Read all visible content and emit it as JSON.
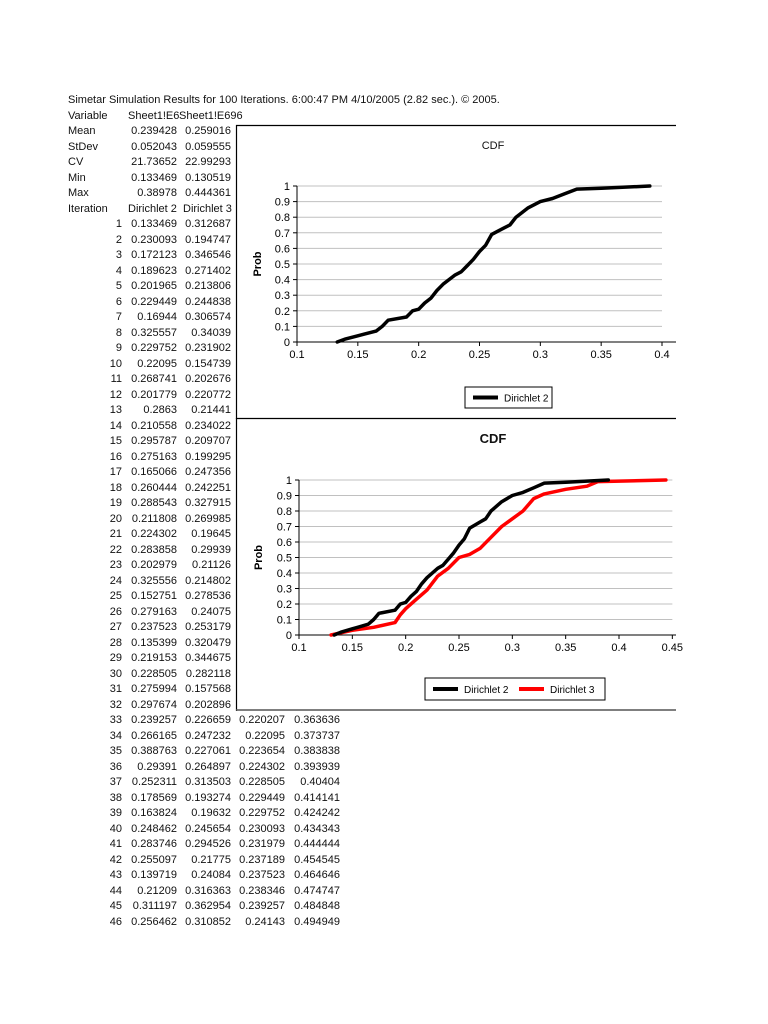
{
  "header": {
    "title": "Simetar Simulation Results for 100 Iterations.  6:00:47 PM 4/10/2005 (2.82 sec.).  © 2005."
  },
  "stats": {
    "variable_label": "Variable",
    "columns": [
      "Sheet1!E6",
      "Sheet1!E696"
    ],
    "rows": [
      {
        "label": "Mean",
        "values": [
          "0.239428",
          "0.259016"
        ]
      },
      {
        "label": "StDev",
        "values": [
          "0.052043",
          "0.059555"
        ]
      },
      {
        "label": "CV",
        "values": [
          "21.73652",
          "22.99293"
        ]
      },
      {
        "label": "Min",
        "values": [
          "0.133469",
          "0.130519"
        ]
      },
      {
        "label": "Max",
        "values": [
          "0.38978",
          "0.444361"
        ]
      }
    ],
    "iteration_label": "Iteration",
    "series_names": [
      "Dirichlet 2",
      "Dirichlet 3"
    ]
  },
  "iterations": [
    [
      "1",
      "0.133469",
      "0.312687"
    ],
    [
      "2",
      "0.230093",
      "0.194747"
    ],
    [
      "3",
      "0.172123",
      "0.346546"
    ],
    [
      "4",
      "0.189623",
      "0.271402"
    ],
    [
      "5",
      "0.201965",
      "0.213806"
    ],
    [
      "6",
      "0.229449",
      "0.244838"
    ],
    [
      "7",
      "0.16944",
      "0.306574"
    ],
    [
      "8",
      "0.325557",
      "0.34039"
    ],
    [
      "9",
      "0.229752",
      "0.231902"
    ],
    [
      "10",
      "0.22095",
      "0.154739"
    ],
    [
      "11",
      "0.268741",
      "0.202676"
    ],
    [
      "12",
      "0.201779",
      "0.220772"
    ],
    [
      "13",
      "0.2863",
      "0.21441"
    ],
    [
      "14",
      "0.210558",
      "0.234022"
    ],
    [
      "15",
      "0.295787",
      "0.209707"
    ],
    [
      "16",
      "0.275163",
      "0.199295"
    ],
    [
      "17",
      "0.165066",
      "0.247356"
    ],
    [
      "18",
      "0.260444",
      "0.242251"
    ],
    [
      "19",
      "0.288543",
      "0.327915"
    ],
    [
      "20",
      "0.211808",
      "0.269985"
    ],
    [
      "21",
      "0.224302",
      "0.19645"
    ],
    [
      "22",
      "0.283858",
      "0.29939"
    ],
    [
      "23",
      "0.202979",
      "0.21126"
    ],
    [
      "24",
      "0.325556",
      "0.214802"
    ],
    [
      "25",
      "0.152751",
      "0.278536"
    ],
    [
      "26",
      "0.279163",
      "0.24075"
    ],
    [
      "27",
      "0.237523",
      "0.253179"
    ],
    [
      "28",
      "0.135399",
      "0.320479"
    ],
    [
      "29",
      "0.219153",
      "0.344675"
    ],
    [
      "30",
      "0.228505",
      "0.282118"
    ],
    [
      "31",
      "0.275994",
      "0.157568"
    ],
    [
      "32",
      "0.297674",
      "0.202896"
    ],
    [
      "33",
      "0.239257",
      "0.226659",
      "0.220207",
      "0.363636"
    ],
    [
      "34",
      "0.266165",
      "0.247232",
      "0.22095",
      "0.373737"
    ],
    [
      "35",
      "0.388763",
      "0.227061",
      "0.223654",
      "0.383838"
    ],
    [
      "36",
      "0.29391",
      "0.264897",
      "0.224302",
      "0.393939"
    ],
    [
      "37",
      "0.252311",
      "0.313503",
      "0.228505",
      "0.40404"
    ],
    [
      "38",
      "0.178569",
      "0.193274",
      "0.229449",
      "0.414141"
    ],
    [
      "39",
      "0.163824",
      "0.19632",
      "0.229752",
      "0.424242"
    ],
    [
      "40",
      "0.248462",
      "0.245654",
      "0.230093",
      "0.434343"
    ],
    [
      "41",
      "0.283746",
      "0.294526",
      "0.231979",
      "0.444444"
    ],
    [
      "42",
      "0.255097",
      "0.21775",
      "0.237189",
      "0.454545"
    ],
    [
      "43",
      "0.139719",
      "0.24084",
      "0.237523",
      "0.464646"
    ],
    [
      "44",
      "0.21209",
      "0.316363",
      "0.238346",
      "0.474747"
    ],
    [
      "45",
      "0.311197",
      "0.362954",
      "0.239257",
      "0.484848"
    ],
    [
      "46",
      "0.256462",
      "0.310852",
      "0.24143",
      "0.494949"
    ]
  ],
  "chart_data": [
    {
      "type": "line",
      "title": "CDF",
      "xlabel": "",
      "ylabel": "Prob",
      "xlim": [
        0.1,
        0.4
      ],
      "ylim": [
        0,
        1
      ],
      "xticks": [
        "0.1",
        "0.15",
        "0.2",
        "0.25",
        "0.3",
        "0.35",
        "0.4"
      ],
      "yticks": [
        "0",
        "0.1",
        "0.2",
        "0.3",
        "0.4",
        "0.5",
        "0.6",
        "0.7",
        "0.8",
        "0.9",
        "1"
      ],
      "grid": true,
      "legend": "bottom",
      "series": [
        {
          "name": "Dirichlet 2",
          "color": "#000000",
          "x": [
            0.133,
            0.14,
            0.15,
            0.155,
            0.165,
            0.17,
            0.175,
            0.19,
            0.195,
            0.2,
            0.205,
            0.21,
            0.215,
            0.22,
            0.23,
            0.235,
            0.24,
            0.245,
            0.25,
            0.255,
            0.26,
            0.265,
            0.27,
            0.275,
            0.28,
            0.29,
            0.3,
            0.31,
            0.32,
            0.33,
            0.35,
            0.39
          ],
          "y": [
            0,
            0.02,
            0.04,
            0.05,
            0.07,
            0.1,
            0.14,
            0.16,
            0.2,
            0.21,
            0.25,
            0.28,
            0.33,
            0.37,
            0.43,
            0.45,
            0.49,
            0.53,
            0.58,
            0.62,
            0.69,
            0.71,
            0.73,
            0.75,
            0.8,
            0.86,
            0.9,
            0.92,
            0.95,
            0.98,
            0.985,
            1.0
          ]
        }
      ]
    },
    {
      "type": "line",
      "title": "CDF",
      "xlabel": "",
      "ylabel": "Prob",
      "xlim": [
        0.1,
        0.45
      ],
      "ylim": [
        0,
        1
      ],
      "xticks": [
        "0.1",
        "0.15",
        "0.2",
        "0.25",
        "0.3",
        "0.35",
        "0.4",
        "0.45"
      ],
      "yticks": [
        "0",
        "0.1",
        "0.2",
        "0.3",
        "0.4",
        "0.5",
        "0.6",
        "0.7",
        "0.8",
        "0.9",
        "1"
      ],
      "grid": true,
      "legend": "bottom",
      "series": [
        {
          "name": "Dirichlet 2",
          "color": "#000000",
          "x": [
            0.133,
            0.14,
            0.15,
            0.155,
            0.165,
            0.17,
            0.175,
            0.19,
            0.195,
            0.2,
            0.205,
            0.21,
            0.215,
            0.22,
            0.23,
            0.235,
            0.24,
            0.245,
            0.25,
            0.255,
            0.26,
            0.265,
            0.27,
            0.275,
            0.28,
            0.29,
            0.3,
            0.31,
            0.32,
            0.33,
            0.35,
            0.39
          ],
          "y": [
            0,
            0.02,
            0.04,
            0.05,
            0.07,
            0.1,
            0.14,
            0.16,
            0.2,
            0.21,
            0.25,
            0.28,
            0.33,
            0.37,
            0.43,
            0.45,
            0.49,
            0.53,
            0.58,
            0.62,
            0.69,
            0.71,
            0.73,
            0.75,
            0.8,
            0.86,
            0.9,
            0.92,
            0.95,
            0.98,
            0.985,
            1.0
          ]
        },
        {
          "name": "Dirichlet 3",
          "color": "#ff0000",
          "x": [
            0.13,
            0.15,
            0.17,
            0.19,
            0.195,
            0.2,
            0.21,
            0.22,
            0.23,
            0.24,
            0.25,
            0.26,
            0.27,
            0.28,
            0.29,
            0.3,
            0.31,
            0.32,
            0.33,
            0.35,
            0.37,
            0.38,
            0.444
          ],
          "y": [
            0,
            0.03,
            0.05,
            0.08,
            0.13,
            0.17,
            0.23,
            0.29,
            0.38,
            0.43,
            0.5,
            0.52,
            0.56,
            0.63,
            0.7,
            0.75,
            0.8,
            0.88,
            0.91,
            0.94,
            0.96,
            0.99,
            1.0
          ]
        }
      ]
    }
  ]
}
